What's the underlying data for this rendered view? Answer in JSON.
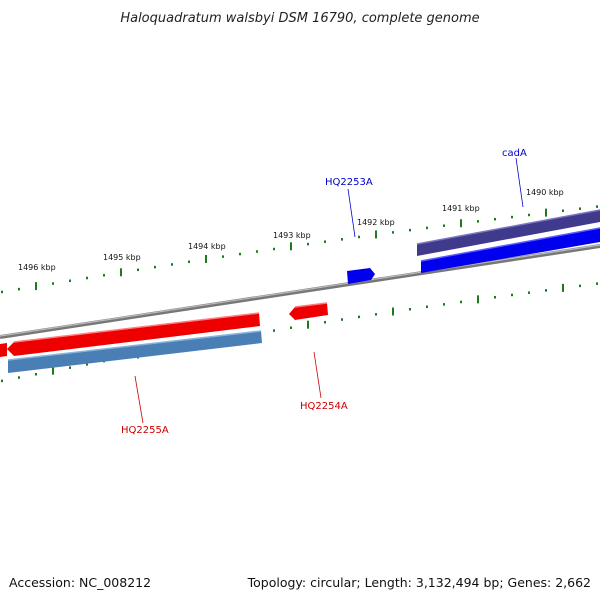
{
  "title": "Haloquadratum walsbyi DSM 16790, complete genome",
  "footer": {
    "accession": "Accession: NC_008212",
    "summary": "Topology: circular; Length: 3,132,494 bp; Genes: 2,662"
  },
  "colors": {
    "backbone": "#888888",
    "tick": "#1e7a1e",
    "forward_gene": "#0000ee",
    "forward_gene_alt": "#3f3a8c",
    "reverse_gene": "#ee0000",
    "reverse_gene_alt": "#4a7fb5",
    "label_forward": "#0000cc",
    "label_reverse": "#cc0000"
  },
  "kbp_ticks": [
    "1490 kbp",
    "1491 kbp",
    "1492 kbp",
    "1493 kbp",
    "1494 kbp",
    "1495 kbp",
    "1496 kbp"
  ],
  "gene_labels": {
    "cadA": "cadA",
    "hq2253a": "HQ2253A",
    "hq2254a": "HQ2254A",
    "hq2255a": "HQ2255A"
  }
}
